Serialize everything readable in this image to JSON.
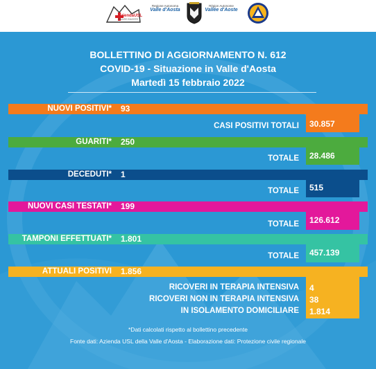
{
  "header": {
    "logo_ausl": {
      "text": "AziendaUSL",
      "sub": "VALLÉE D'AOSTE"
    },
    "logo_regione1": {
      "line1": "Regione Autonoma",
      "line2": "Valle d'Aosta"
    },
    "logo_regione2": {
      "line1": "Région Autonome",
      "line2": "Vallée d'Aoste"
    }
  },
  "title": {
    "line1": "BOLLETTINO DI AGGIORNAMENTO N. 612",
    "line2": "COVID-19 - Situazione in Valle d'Aosta",
    "line3": "Martedì 15 febbraio 2022"
  },
  "rows": {
    "nuovi_positivi": {
      "label": "NUOVI POSITIVI*",
      "value": "93",
      "total_label": "CASI POSITIVI TOTALI",
      "total_value": "30.857"
    },
    "guariti": {
      "label": "GUARITI*",
      "value": "250",
      "total_label": "TOTALE",
      "total_value": "28.486"
    },
    "deceduti": {
      "label": "DECEDUTI*",
      "value": "1",
      "total_label": "TOTALE",
      "total_value": "515"
    },
    "nuovi_casi_testati": {
      "label": "NUOVI CASI TESTATI*",
      "value": "199",
      "total_label": "TOTALE",
      "total_value": "126.612"
    },
    "tamponi": {
      "label": "TAMPONI EFFETTUATI*",
      "value": "1.801",
      "total_label": "TOTALE",
      "total_value": "457.139"
    },
    "attuali_positivi": {
      "label": "ATTUALI POSITIVI",
      "value": "1.856",
      "details": [
        {
          "label": "RICOVERI IN TERAPIA INTENSIVA",
          "value": "4"
        },
        {
          "label": "RICOVERI NON IN TERAPIA INTENSIVA",
          "value": "38"
        },
        {
          "label": "IN ISOLAMENTO DOMICILIARE",
          "value": "1.814"
        }
      ]
    }
  },
  "notes": {
    "footnote": "*Dati calcolati rispetto al bollettino precedente",
    "source": "Fonte dati: Azienda USL della Valle d'Aosta - Elaborazione dati: Protezione civile regionale"
  },
  "colors": {
    "background": "#2b98d4",
    "orange": "#f47b1c",
    "green": "#4cab3e",
    "navy": "#0b4e8c",
    "magenta": "#e3189b",
    "teal": "#35c3a3",
    "yellow": "#f6b221"
  }
}
